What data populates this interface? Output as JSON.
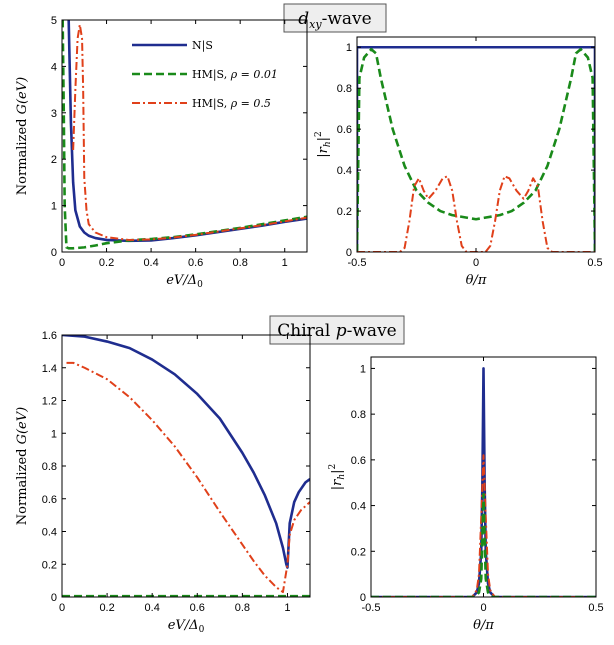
{
  "section_titles": [
    "d_xy-wave",
    "Chiral p-wave"
  ],
  "colors": {
    "ns": "#1f2d8f",
    "hm001": "#1a8a1a",
    "hm05": "#e0401a"
  },
  "chart_data": [
    {
      "section": "d_xy-wave",
      "type": "line",
      "xlabel": "eV/Δ0",
      "ylabel": "Normalized G(eV)",
      "xlim": [
        0,
        1.1
      ],
      "ylim": [
        0,
        5
      ],
      "xticks": [
        0,
        0.2,
        0.4,
        0.6,
        0.8,
        1
      ],
      "yticks": [
        0,
        1,
        2,
        3,
        4,
        5
      ],
      "legend": [
        "N|S",
        "HM|S, ρ = 0.01",
        "HM|S, ρ = 0.5"
      ],
      "legend_position": "top-right",
      "series": [
        {
          "name": "N|S",
          "style": "solid",
          "color": "ns",
          "x": [
            0.03,
            0.04,
            0.05,
            0.06,
            0.08,
            0.1,
            0.12,
            0.15,
            0.2,
            0.3,
            0.4,
            0.5,
            0.6,
            0.7,
            0.8,
            0.9,
            1.0,
            1.1
          ],
          "y": [
            5,
            2.8,
            1.5,
            0.9,
            0.55,
            0.42,
            0.35,
            0.3,
            0.26,
            0.24,
            0.25,
            0.3,
            0.36,
            0.43,
            0.5,
            0.57,
            0.65,
            0.72
          ]
        },
        {
          "name": "HM|S, ρ = 0.01",
          "style": "dashed",
          "color": "hm001",
          "x": [
            0.0,
            0.003,
            0.008,
            0.012,
            0.02,
            0.03,
            0.05,
            0.1,
            0.15,
            0.2,
            0.3,
            0.4,
            0.5,
            0.6,
            0.7,
            0.8,
            0.9,
            1.0,
            1.1
          ],
          "y": [
            5,
            5,
            3,
            1.0,
            0.1,
            0.08,
            0.08,
            0.1,
            0.14,
            0.19,
            0.25,
            0.28,
            0.32,
            0.38,
            0.45,
            0.52,
            0.6,
            0.68,
            0.76
          ]
        },
        {
          "name": "HM|S, ρ = 0.5",
          "style": "dashdot",
          "color": "hm05",
          "x": [
            0.05,
            0.06,
            0.07,
            0.08,
            0.09,
            0.095,
            0.1,
            0.11,
            0.12,
            0.15,
            0.2,
            0.3,
            0.4,
            0.5,
            0.6,
            0.7,
            0.8,
            0.9,
            1.0,
            1.1
          ],
          "y": [
            2.2,
            3.5,
            4.6,
            4.9,
            4.6,
            3.5,
            1.6,
            0.9,
            0.6,
            0.42,
            0.32,
            0.26,
            0.27,
            0.31,
            0.37,
            0.44,
            0.51,
            0.58,
            0.66,
            0.74
          ]
        }
      ]
    },
    {
      "section": "d_xy-wave",
      "type": "line",
      "xlabel": "θ/π",
      "ylabel": "|r_h|^2",
      "xlim": [
        -0.5,
        0.5
      ],
      "ylim": [
        0,
        1.05
      ],
      "xticks": [
        -0.5,
        0,
        0.5
      ],
      "yticks": [
        0,
        0.2,
        0.4,
        0.6,
        0.8,
        1
      ],
      "series": [
        {
          "name": "N|S",
          "style": "solid",
          "color": "ns",
          "x": [
            -0.5,
            -0.5,
            0.5,
            0.5
          ],
          "y": [
            0,
            1,
            1,
            0
          ]
        },
        {
          "name": "HM|S, ρ = 0.01",
          "style": "dashed",
          "color": "hm001",
          "x": [
            -0.5,
            -0.49,
            -0.47,
            -0.44,
            -0.42,
            -0.4,
            -0.35,
            -0.3,
            -0.25,
            -0.2,
            -0.15,
            -0.1,
            0,
            0.1,
            0.15,
            0.2,
            0.25,
            0.3,
            0.35,
            0.4,
            0.42,
            0.44,
            0.47,
            0.49,
            0.5
          ],
          "y": [
            0,
            0.85,
            0.95,
            0.99,
            0.97,
            0.85,
            0.6,
            0.42,
            0.3,
            0.24,
            0.2,
            0.18,
            0.16,
            0.18,
            0.2,
            0.24,
            0.3,
            0.42,
            0.6,
            0.85,
            0.97,
            0.99,
            0.95,
            0.85,
            0
          ]
        },
        {
          "name": "HM|S, ρ = 0.5",
          "style": "dashdot",
          "color": "hm05",
          "x": [
            -0.5,
            -0.32,
            -0.3,
            -0.28,
            -0.26,
            -0.24,
            -0.22,
            -0.2,
            -0.17,
            -0.14,
            -0.12,
            -0.1,
            -0.08,
            -0.06,
            -0.04,
            0,
            0.04,
            0.06,
            0.08,
            0.1,
            0.12,
            0.14,
            0.17,
            0.2,
            0.22,
            0.24,
            0.26,
            0.28,
            0.3,
            0.32,
            0.5
          ],
          "y": [
            0,
            0,
            0.02,
            0.15,
            0.32,
            0.36,
            0.3,
            0.26,
            0.3,
            0.36,
            0.37,
            0.3,
            0.15,
            0.03,
            0,
            0,
            0,
            0.03,
            0.15,
            0.3,
            0.37,
            0.36,
            0.3,
            0.26,
            0.3,
            0.36,
            0.32,
            0.15,
            0.02,
            0,
            0
          ]
        }
      ]
    },
    {
      "section": "Chiral p-wave",
      "type": "line",
      "xlabel": "eV/Δ0",
      "ylabel": "Normalized G(eV)",
      "xlim": [
        0,
        1.1
      ],
      "ylim": [
        0,
        1.6
      ],
      "xticks": [
        0,
        0.2,
        0.4,
        0.6,
        0.8,
        1
      ],
      "yticks": [
        0,
        0.2,
        0.4,
        0.6,
        0.8,
        1,
        1.2,
        1.4,
        1.6
      ],
      "series": [
        {
          "name": "N|S",
          "style": "solid",
          "color": "ns",
          "x": [
            0,
            0.1,
            0.2,
            0.3,
            0.4,
            0.5,
            0.6,
            0.7,
            0.8,
            0.85,
            0.9,
            0.95,
            0.98,
            0.995,
            1.0,
            1.01,
            1.03,
            1.05,
            1.08,
            1.1
          ],
          "y": [
            1.6,
            1.59,
            1.56,
            1.52,
            1.45,
            1.36,
            1.24,
            1.09,
            0.88,
            0.76,
            0.62,
            0.45,
            0.3,
            0.2,
            0.18,
            0.45,
            0.58,
            0.64,
            0.7,
            0.72
          ]
        },
        {
          "name": "HM|S, ρ = 0.01",
          "style": "dashed",
          "color": "hm001",
          "x": [
            0,
            0.2,
            0.4,
            0.6,
            0.8,
            1.0,
            1.1
          ],
          "y": [
            0.005,
            0.005,
            0.005,
            0.005,
            0.005,
            0.005,
            0.005
          ]
        },
        {
          "name": "HM|S, ρ = 0.5",
          "style": "dashdot",
          "color": "hm05",
          "x": [
            0.02,
            0.05,
            0.1,
            0.2,
            0.3,
            0.4,
            0.5,
            0.6,
            0.7,
            0.8,
            0.85,
            0.9,
            0.95,
            0.98,
            1.0,
            1.01,
            1.03,
            1.06,
            1.1
          ],
          "y": [
            1.43,
            1.43,
            1.4,
            1.33,
            1.22,
            1.08,
            0.92,
            0.73,
            0.52,
            0.32,
            0.22,
            0.13,
            0.06,
            0.03,
            0.2,
            0.38,
            0.47,
            0.53,
            0.58
          ]
        }
      ]
    },
    {
      "section": "Chiral p-wave",
      "type": "line",
      "xlabel": "θ/π",
      "ylabel": "|r_h|^2",
      "xlim": [
        -0.5,
        0.5
      ],
      "ylim": [
        0,
        1.05
      ],
      "xticks": [
        -0.5,
        0,
        0.5
      ],
      "yticks": [
        0,
        0.2,
        0.4,
        0.6,
        0.8,
        1
      ],
      "series": [
        {
          "name": "N|S",
          "style": "solid",
          "color": "ns",
          "x": [
            -0.5,
            -0.05,
            -0.03,
            -0.02,
            -0.01,
            -0.005,
            0,
            0.005,
            0.01,
            0.02,
            0.03,
            0.05,
            0.5
          ],
          "y": [
            0,
            0,
            0.02,
            0.06,
            0.2,
            0.5,
            1,
            0.5,
            0.2,
            0.06,
            0.02,
            0,
            0
          ]
        },
        {
          "name": "HM|S, ρ = 0.5",
          "style": "dashdot",
          "color": "hm05",
          "x": [
            -0.5,
            -0.05,
            -0.03,
            -0.02,
            -0.01,
            0,
            0.01,
            0.02,
            0.03,
            0.05,
            0.5
          ],
          "y": [
            0,
            0,
            0.03,
            0.1,
            0.35,
            0.62,
            0.35,
            0.1,
            0.03,
            0,
            0
          ]
        },
        {
          "name": "HM|S, ρ = 0.01",
          "style": "dashed",
          "color": "hm001",
          "x": [
            -0.5,
            -0.04,
            -0.02,
            -0.01,
            0,
            0.01,
            0.02,
            0.04,
            0.5
          ],
          "y": [
            0,
            0,
            0.02,
            0.08,
            0.45,
            0.08,
            0.02,
            0,
            0
          ]
        }
      ]
    }
  ]
}
